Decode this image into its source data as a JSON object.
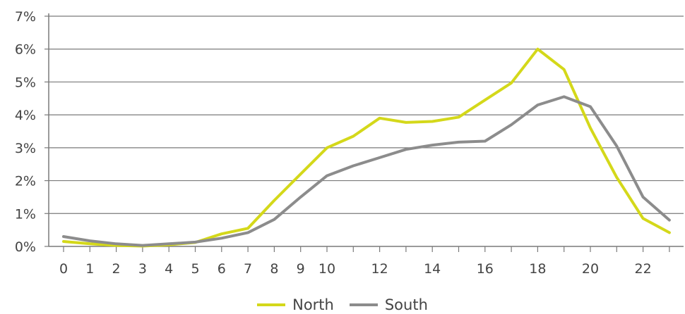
{
  "chart_data": {
    "type": "line",
    "title": "",
    "xlabel": "",
    "ylabel": "",
    "x": [
      0,
      1,
      2,
      3,
      4,
      5,
      6,
      7,
      8,
      9,
      10,
      11,
      12,
      13,
      14,
      15,
      16,
      17,
      18,
      19,
      20,
      21,
      22,
      23
    ],
    "x_tick_labels": [
      "0",
      "1",
      "2",
      "3",
      "4",
      "5",
      "6",
      "7",
      "8",
      "9",
      "10",
      "",
      "12",
      "",
      "14",
      "",
      "16",
      "",
      "18",
      "",
      "20",
      "",
      "22",
      ""
    ],
    "y_ticks": [
      0,
      1,
      2,
      3,
      4,
      5,
      6,
      7
    ],
    "y_tick_labels": [
      "0%",
      "1%",
      "2%",
      "3%",
      "4%",
      "5%",
      "6%",
      "7%"
    ],
    "ylim": [
      0,
      7
    ],
    "grid": "horizontal",
    "legend_position": "bottom-center",
    "series": [
      {
        "name": "North",
        "color": "#d4d81a",
        "values": [
          0.15,
          0.08,
          0.03,
          0.01,
          0.05,
          0.12,
          0.38,
          0.55,
          1.4,
          2.2,
          3.0,
          3.35,
          3.9,
          3.77,
          3.8,
          3.93,
          4.45,
          4.97,
          6.0,
          5.38,
          3.6,
          2.1,
          0.85,
          0.42
        ]
      },
      {
        "name": "South",
        "color": "#8c8c8c",
        "values": [
          0.3,
          0.17,
          0.08,
          0.03,
          0.08,
          0.13,
          0.25,
          0.42,
          0.82,
          1.5,
          2.15,
          2.45,
          2.7,
          2.95,
          3.08,
          3.17,
          3.2,
          3.7,
          4.3,
          4.55,
          4.25,
          3.05,
          1.5,
          0.8
        ]
      }
    ]
  }
}
